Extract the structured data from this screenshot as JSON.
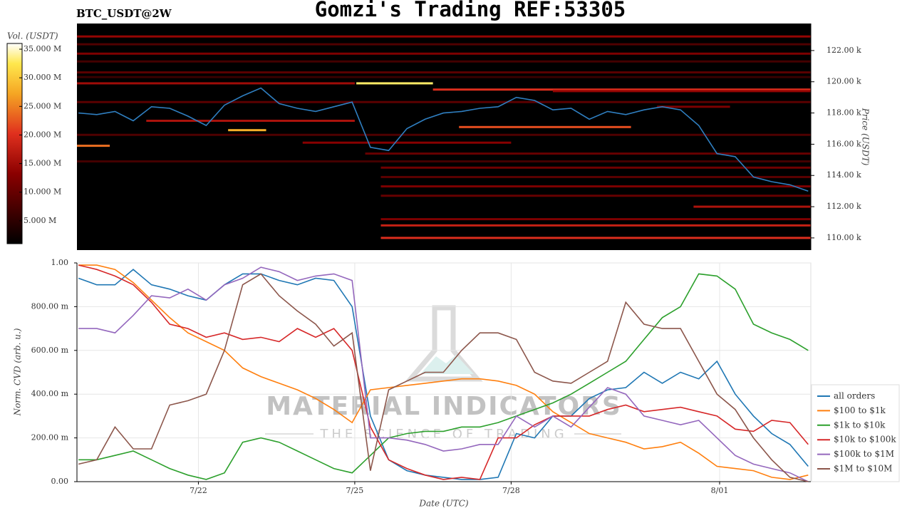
{
  "chart_data": [
    {
      "type": "heatmap",
      "title": "Gomzi's Trading REF:53305",
      "subtitle": "BTC_USDT@2W",
      "colorbar_label": "Vol. (USDT)",
      "y_label": "Price (USDT)",
      "clim": [
        1000000,
        36000000
      ],
      "cticks": [
        {
          "value": 5000000,
          "label": "5.000 M"
        },
        {
          "value": 10000000,
          "label": "10.000 M"
        },
        {
          "value": 15000000,
          "label": "15.000 M"
        },
        {
          "value": 20000000,
          "label": "20.000 M"
        },
        {
          "value": 25000000,
          "label": "25.000 M"
        },
        {
          "value": 30000000,
          "label": "30.000 M"
        },
        {
          "value": 35000000,
          "label": "35.000 M"
        }
      ],
      "xlim": [
        19.67,
        33.75
      ],
      "ylim": [
        109220,
        123730
      ],
      "yticks": [
        {
          "value": 110000,
          "label": "110.00 k"
        },
        {
          "value": 112000,
          "label": "112.00 k"
        },
        {
          "value": 114000,
          "label": "114.00 k"
        },
        {
          "value": 116000,
          "label": "116.00 k"
        },
        {
          "value": 118000,
          "label": "118.00 k"
        },
        {
          "value": 120000,
          "label": "120.00 k"
        },
        {
          "value": 122000,
          "label": "122.00 k"
        }
      ],
      "bands": {
        "price": [
          122900,
          122400,
          121800,
          121300,
          120600,
          120300,
          119900,
          119900,
          119500,
          119400,
          118700,
          118400,
          117500,
          117100,
          116900,
          116600,
          116100,
          115900,
          115400,
          114900,
          114500,
          113900,
          113300,
          112700,
          112000,
          111200,
          110800,
          110000
        ],
        "volume": [
          14000000,
          8000000,
          12000000,
          7000000,
          9000000,
          6000000,
          15000000,
          33000000,
          20000000,
          14000000,
          9000000,
          12000000,
          16000000,
          22000000,
          28000000,
          8000000,
          13000000,
          24000000,
          10000000,
          7000000,
          11000000,
          9000000,
          12000000,
          10000000,
          16000000,
          12000000,
          18000000,
          20000000
        ],
        "start": [
          19.67,
          19.67,
          19.67,
          19.67,
          19.67,
          19.67,
          19.67,
          25.03,
          26.5,
          28.8,
          19.67,
          30.8,
          21.0,
          27.0,
          22.57,
          19.67,
          24.0,
          19.67,
          25.2,
          19.67,
          25.5,
          25.5,
          25.5,
          25.5,
          31.5,
          25.5,
          25.5,
          25.5
        ],
        "end": [
          33.75,
          33.75,
          33.75,
          33.75,
          33.75,
          33.75,
          25.0,
          26.5,
          33.75,
          33.75,
          33.75,
          32.2,
          25.0,
          30.3,
          23.3,
          33.75,
          28.0,
          20.3,
          33.75,
          33.75,
          33.75,
          33.75,
          33.75,
          33.75,
          33.75,
          33.75,
          33.75,
          33.75
        ]
      },
      "x": [
        19.7,
        20.05,
        20.4,
        20.75,
        21.1,
        21.45,
        21.8,
        22.15,
        22.5,
        22.85,
        23.2,
        23.55,
        23.9,
        24.25,
        24.6,
        24.95,
        25.3,
        25.65,
        26.0,
        26.35,
        26.7,
        27.05,
        27.4,
        27.75,
        28.1,
        28.45,
        28.8,
        29.15,
        29.5,
        29.85,
        30.2,
        30.55,
        30.9,
        31.25,
        31.6,
        31.95,
        32.3,
        32.65,
        33.0,
        33.35,
        33.7
      ],
      "series": [
        {
          "color": "#2f7fc1",
          "values": [
            118000,
            117900,
            118100,
            117500,
            118400,
            118300,
            117800,
            117200,
            118500,
            119100,
            119600,
            118600,
            118300,
            118100,
            118400,
            118700,
            115800,
            115600,
            117000,
            117600,
            118000,
            118100,
            118300,
            118400,
            119000,
            118800,
            118200,
            118300,
            117600,
            118100,
            117900,
            118200,
            118400,
            118200,
            117200,
            115400,
            115200,
            113900,
            113600,
            113400,
            113000
          ]
        }
      ]
    },
    {
      "type": "line",
      "y_label": "Norm. CVD (arb. u.)",
      "x_label": "Date (UTC)",
      "annotations": [
        "MATERIAL INDICATORS",
        "THE SCIENCE OF TRADING"
      ],
      "xlim": [
        19.67,
        33.75
      ],
      "xticks": [
        {
          "value": 22,
          "label": "7/22"
        },
        {
          "value": 25,
          "label": "7/25"
        },
        {
          "value": 28,
          "label": "7/28"
        },
        {
          "value": 32,
          "label": "8/01"
        }
      ],
      "ylim": [
        0,
        1
      ],
      "yticks": [
        {
          "value": 0,
          "label": "0.00"
        },
        {
          "value": 0.2,
          "label": "200.00 m"
        },
        {
          "value": 0.4,
          "label": "400.00 m"
        },
        {
          "value": 0.6,
          "label": "600.00 m"
        },
        {
          "value": 0.8,
          "label": "800.00 m"
        },
        {
          "value": 1,
          "label": "1.00"
        }
      ],
      "grid": true,
      "x": [
        19.7,
        20.05,
        20.4,
        20.75,
        21.1,
        21.45,
        21.8,
        22.15,
        22.5,
        22.85,
        23.2,
        23.55,
        23.9,
        24.25,
        24.6,
        24.95,
        25.3,
        25.65,
        26.0,
        26.35,
        26.7,
        27.05,
        27.4,
        27.75,
        28.1,
        28.45,
        28.8,
        29.15,
        29.5,
        29.85,
        30.2,
        30.55,
        30.9,
        31.25,
        31.6,
        31.95,
        32.3,
        32.65,
        33.0,
        33.35,
        33.7
      ],
      "series": [
        {
          "name": "all orders",
          "color": "#1f77b4",
          "values": [
            0.93,
            0.9,
            0.9,
            0.97,
            0.9,
            0.88,
            0.85,
            0.83,
            0.9,
            0.95,
            0.95,
            0.92,
            0.9,
            0.93,
            0.92,
            0.8,
            0.3,
            0.1,
            0.05,
            0.03,
            0.02,
            0.01,
            0.01,
            0.02,
            0.22,
            0.2,
            0.3,
            0.3,
            0.38,
            0.42,
            0.43,
            0.5,
            0.45,
            0.5,
            0.47,
            0.55,
            0.4,
            0.3,
            0.22,
            0.17,
            0.07
          ]
        },
        {
          "name": "$100 to $1k",
          "color": "#ff7f0e",
          "values": [
            0.99,
            0.99,
            0.97,
            0.91,
            0.83,
            0.75,
            0.68,
            0.64,
            0.6,
            0.52,
            0.48,
            0.45,
            0.42,
            0.38,
            0.33,
            0.27,
            0.42,
            0.43,
            0.44,
            0.45,
            0.46,
            0.47,
            0.47,
            0.46,
            0.44,
            0.4,
            0.32,
            0.27,
            0.22,
            0.2,
            0.18,
            0.15,
            0.16,
            0.18,
            0.13,
            0.07,
            0.06,
            0.05,
            0.02,
            0.01,
            0.03
          ]
        },
        {
          "name": "$1k to $10k",
          "color": "#2ca02c",
          "values": [
            0.1,
            0.1,
            0.12,
            0.14,
            0.1,
            0.06,
            0.03,
            0.01,
            0.04,
            0.18,
            0.2,
            0.18,
            0.14,
            0.1,
            0.06,
            0.04,
            0.12,
            0.2,
            0.22,
            0.23,
            0.23,
            0.25,
            0.25,
            0.27,
            0.3,
            0.33,
            0.36,
            0.4,
            0.45,
            0.5,
            0.55,
            0.65,
            0.75,
            0.8,
            0.95,
            0.94,
            0.88,
            0.72,
            0.68,
            0.65,
            0.6
          ]
        },
        {
          "name": "$10k to $100k",
          "color": "#d62728",
          "values": [
            0.99,
            0.97,
            0.94,
            0.9,
            0.82,
            0.72,
            0.7,
            0.66,
            0.68,
            0.65,
            0.66,
            0.64,
            0.7,
            0.66,
            0.7,
            0.6,
            0.25,
            0.1,
            0.06,
            0.03,
            0.01,
            0.02,
            0.01,
            0.2,
            0.2,
            0.26,
            0.3,
            0.3,
            0.3,
            0.33,
            0.35,
            0.32,
            0.33,
            0.34,
            0.32,
            0.3,
            0.24,
            0.23,
            0.28,
            0.27,
            0.17
          ]
        },
        {
          "name": "$100k to $1M",
          "color": "#9467bd",
          "values": [
            0.7,
            0.7,
            0.68,
            0.76,
            0.85,
            0.84,
            0.88,
            0.83,
            0.9,
            0.93,
            0.98,
            0.96,
            0.92,
            0.94,
            0.95,
            0.92,
            0.2,
            0.2,
            0.19,
            0.17,
            0.14,
            0.15,
            0.17,
            0.17,
            0.3,
            0.25,
            0.3,
            0.25,
            0.34,
            0.43,
            0.4,
            0.3,
            0.28,
            0.26,
            0.28,
            0.2,
            0.12,
            0.08,
            0.06,
            0.04,
            0.0
          ]
        },
        {
          "name": "$1M to $10M",
          "color": "#8c564b",
          "values": [
            0.08,
            0.1,
            0.25,
            0.15,
            0.15,
            0.35,
            0.37,
            0.4,
            0.6,
            0.9,
            0.95,
            0.85,
            0.78,
            0.72,
            0.62,
            0.68,
            0.05,
            0.42,
            0.46,
            0.5,
            0.5,
            0.6,
            0.68,
            0.68,
            0.65,
            0.5,
            0.46,
            0.45,
            0.5,
            0.55,
            0.82,
            0.72,
            0.7,
            0.7,
            0.55,
            0.4,
            0.33,
            0.2,
            0.1,
            0.02,
            0.0
          ]
        }
      ]
    }
  ]
}
